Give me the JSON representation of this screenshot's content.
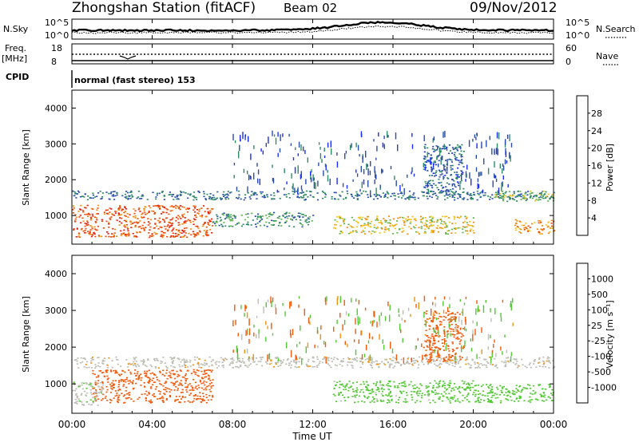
{
  "header": {
    "station": "Zhongshan Station (fitACF)",
    "beam": "Beam 02",
    "date": "09/Nov/2012"
  },
  "top_panels": {
    "nsky_label": "N.Sky",
    "nsearch_label": "N.Search",
    "nsky_ticks": [
      "10^5",
      "10^0"
    ],
    "nsearch_ticks": [
      "10^5",
      "10^0"
    ],
    "freq_label_1": "Freq.",
    "freq_label_2": "[MHz]",
    "freq_ticks": [
      "18",
      "8"
    ],
    "nave_label": "Nave",
    "nave_ticks": [
      "60",
      "0"
    ],
    "cpid_label": "CPID",
    "cpid_text": "normal (fast stereo) 153"
  },
  "x_axis": {
    "label": "Time UT",
    "ticks": [
      "00:00",
      "04:00",
      "08:00",
      "12:00",
      "16:00",
      "20:00",
      "00:00"
    ]
  },
  "colors": {
    "power_scale": [
      "#1a2cff",
      "#2a4dab",
      "#2e8b63",
      "#5fb34a",
      "#f4c21a",
      "#f08a0a",
      "#f04a0a",
      "#e81a0a"
    ],
    "velocity_scale": [
      "#e80a0a",
      "#f05a0a",
      "#f0920f",
      "#f5d050",
      "#c4c4bc",
      "#52c832",
      "#3a9a6e",
      "#2a4dab",
      "#1a2cff"
    ],
    "ground_scatter": "#bdbdb5"
  },
  "chart_data": [
    {
      "type": "heatmap",
      "title": "",
      "xlabel": "",
      "ylabel": "Slant Range [km]",
      "ylim": [
        200,
        4500
      ],
      "y_ticks": [
        "1000",
        "2000",
        "3000",
        "4000"
      ],
      "colorbar": {
        "label": "Power [dB]",
        "ticks": [
          "28",
          "24",
          "20",
          "16",
          "12",
          "8",
          "4"
        ],
        "range": [
          0,
          32
        ]
      },
      "bands": [
        {
          "x": [
            0,
            24
          ],
          "y": [
            1450,
            1700
          ],
          "value": 8
        },
        {
          "x": [
            0,
            7
          ],
          "y": [
            400,
            1300
          ],
          "value": 26
        },
        {
          "x": [
            7,
            12
          ],
          "y": [
            700,
            1100
          ],
          "value": 10
        },
        {
          "x": [
            13,
            20
          ],
          "y": [
            500,
            1000
          ],
          "value": 18
        },
        {
          "x": [
            17.5,
            19.5
          ],
          "y": [
            1600,
            3000
          ],
          "value": 7
        },
        {
          "x": [
            21,
            24
          ],
          "y": [
            1400,
            1700
          ],
          "value": 14
        },
        {
          "x": [
            22,
            24
          ],
          "y": [
            500,
            900
          ],
          "value": 22
        }
      ]
    },
    {
      "type": "heatmap",
      "title": "",
      "xlabel": "Time UT",
      "ylabel": "Slant Range [km]",
      "ylim": [
        200,
        4500
      ],
      "y_ticks": [
        "1000",
        "2000",
        "3000",
        "4000"
      ],
      "colorbar": {
        "label": "Velocity [m s⁻¹]",
        "ticks": [
          "1000",
          "500",
          "100",
          "25",
          "-25",
          "-100",
          "-500",
          "-1000"
        ],
        "range": [
          -1000,
          1000
        ]
      },
      "bands": [
        {
          "x": [
            0,
            24
          ],
          "y": [
            1450,
            1750
          ],
          "value": 0
        },
        {
          "x": [
            1,
            7
          ],
          "y": [
            500,
            1400
          ],
          "value": -300
        },
        {
          "x": [
            0,
            1.5
          ],
          "y": [
            400,
            1100
          ],
          "value": 80
        },
        {
          "x": [
            13,
            20
          ],
          "y": [
            500,
            1100
          ],
          "value": 150
        },
        {
          "x": [
            20,
            24
          ],
          "y": [
            500,
            1000
          ],
          "value": 200
        },
        {
          "x": [
            17.5,
            19.5
          ],
          "y": [
            1600,
            3000
          ],
          "value": -150
        }
      ]
    }
  ]
}
